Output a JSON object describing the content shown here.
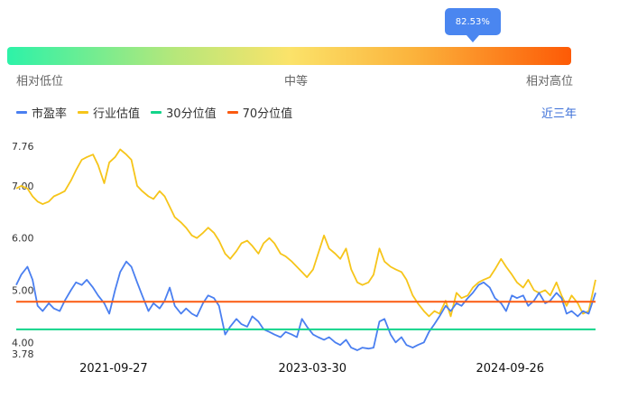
{
  "percentile": {
    "label": "82.53%",
    "value": 0.8253
  },
  "scale": {
    "low": "相对低位",
    "mid": "中等",
    "high": "相对高位"
  },
  "legend": [
    {
      "name": "市盈率",
      "color": "#4a7ff0"
    },
    {
      "name": "行业估值",
      "color": "#f6c51a"
    },
    {
      "name": "30分位值",
      "color": "#12d48a"
    },
    {
      "name": "70分位值",
      "color": "#fb5a10"
    }
  ],
  "period": "近三年",
  "chart_data": {
    "type": "line",
    "ylim": [
      3.78,
      7.76
    ],
    "y_ticks": [
      "7.76",
      "7.00",
      "6.00",
      "5.00",
      "4.00",
      "3.78"
    ],
    "x_ticks": [
      "2021-09-27",
      "2023-03-30",
      "2024-09-26"
    ],
    "x_range": [
      "2021-01-01",
      "2025-05-20"
    ],
    "grid": false,
    "legend_position": "top-left",
    "reference_lines": [
      {
        "name": "30分位值",
        "value": 4.25
      },
      {
        "name": "70分位值",
        "value": 4.78
      }
    ],
    "series": [
      {
        "name": "市盈率",
        "points": [
          [
            "2021-01-01",
            5.1
          ],
          [
            "2021-01-15",
            5.3
          ],
          [
            "2021-02-01",
            5.45
          ],
          [
            "2021-02-15",
            5.2
          ],
          [
            "2021-03-01",
            4.7
          ],
          [
            "2021-03-15",
            4.6
          ],
          [
            "2021-04-01",
            4.75
          ],
          [
            "2021-04-15",
            4.65
          ],
          [
            "2021-05-01",
            4.6
          ],
          [
            "2021-05-15",
            4.8
          ],
          [
            "2021-06-01",
            5.0
          ],
          [
            "2021-06-15",
            5.15
          ],
          [
            "2021-07-01",
            5.1
          ],
          [
            "2021-07-15",
            5.2
          ],
          [
            "2021-08-01",
            5.05
          ],
          [
            "2021-08-15",
            4.9
          ],
          [
            "2021-09-01",
            4.75
          ],
          [
            "2021-09-15",
            4.55
          ],
          [
            "2021-10-01",
            5.0
          ],
          [
            "2021-10-15",
            5.35
          ],
          [
            "2021-11-01",
            5.55
          ],
          [
            "2021-11-15",
            5.45
          ],
          [
            "2021-12-01",
            5.15
          ],
          [
            "2021-12-15",
            4.9
          ],
          [
            "2022-01-01",
            4.6
          ],
          [
            "2022-01-15",
            4.75
          ],
          [
            "2022-02-01",
            4.65
          ],
          [
            "2022-02-15",
            4.8
          ],
          [
            "2022-03-01",
            5.05
          ],
          [
            "2022-03-15",
            4.7
          ],
          [
            "2022-04-01",
            4.55
          ],
          [
            "2022-04-15",
            4.65
          ],
          [
            "2022-05-01",
            4.55
          ],
          [
            "2022-05-15",
            4.5
          ],
          [
            "2022-06-01",
            4.75
          ],
          [
            "2022-06-15",
            4.9
          ],
          [
            "2022-07-01",
            4.85
          ],
          [
            "2022-07-15",
            4.7
          ],
          [
            "2022-08-01",
            4.15
          ],
          [
            "2022-08-15",
            4.3
          ],
          [
            "2022-09-01",
            4.45
          ],
          [
            "2022-09-15",
            4.35
          ],
          [
            "2022-10-01",
            4.3
          ],
          [
            "2022-10-15",
            4.5
          ],
          [
            "2022-11-01",
            4.4
          ],
          [
            "2022-11-15",
            4.25
          ],
          [
            "2022-12-01",
            4.2
          ],
          [
            "2022-12-15",
            4.15
          ],
          [
            "2023-01-01",
            4.1
          ],
          [
            "2023-01-15",
            4.2
          ],
          [
            "2023-02-01",
            4.15
          ],
          [
            "2023-02-15",
            4.1
          ],
          [
            "2023-03-01",
            4.45
          ],
          [
            "2023-03-15",
            4.3
          ],
          [
            "2023-04-01",
            4.15
          ],
          [
            "2023-04-15",
            4.1
          ],
          [
            "2023-05-01",
            4.05
          ],
          [
            "2023-05-15",
            4.1
          ],
          [
            "2023-06-01",
            4.0
          ],
          [
            "2023-06-15",
            3.95
          ],
          [
            "2023-07-01",
            4.05
          ],
          [
            "2023-07-15",
            3.9
          ],
          [
            "2023-08-01",
            3.85
          ],
          [
            "2023-08-15",
            3.9
          ],
          [
            "2023-09-01",
            3.88
          ],
          [
            "2023-09-15",
            3.9
          ],
          [
            "2023-10-01",
            4.4
          ],
          [
            "2023-10-15",
            4.45
          ],
          [
            "2023-11-01",
            4.15
          ],
          [
            "2023-11-15",
            4.0
          ],
          [
            "2023-12-01",
            4.1
          ],
          [
            "2023-12-15",
            3.95
          ],
          [
            "2024-01-01",
            3.9
          ],
          [
            "2024-01-15",
            3.95
          ],
          [
            "2024-02-01",
            4.0
          ],
          [
            "2024-02-15",
            4.2
          ],
          [
            "2024-03-01",
            4.35
          ],
          [
            "2024-03-15",
            4.5
          ],
          [
            "2024-04-01",
            4.7
          ],
          [
            "2024-04-15",
            4.6
          ],
          [
            "2024-05-01",
            4.75
          ],
          [
            "2024-05-15",
            4.7
          ],
          [
            "2024-06-01",
            4.85
          ],
          [
            "2024-06-15",
            4.95
          ],
          [
            "2024-07-01",
            5.1
          ],
          [
            "2024-07-15",
            5.15
          ],
          [
            "2024-08-01",
            5.05
          ],
          [
            "2024-08-15",
            4.85
          ],
          [
            "2024-09-01",
            4.75
          ],
          [
            "2024-09-15",
            4.6
          ],
          [
            "2024-10-01",
            4.9
          ],
          [
            "2024-10-15",
            4.85
          ],
          [
            "2024-11-01",
            4.9
          ],
          [
            "2024-11-15",
            4.7
          ],
          [
            "2024-12-01",
            4.8
          ],
          [
            "2024-12-15",
            4.95
          ],
          [
            "2025-01-01",
            4.75
          ],
          [
            "2025-01-15",
            4.8
          ],
          [
            "2025-02-01",
            4.95
          ],
          [
            "2025-02-15",
            4.85
          ],
          [
            "2025-03-01",
            4.55
          ],
          [
            "2025-03-15",
            4.6
          ],
          [
            "2025-04-01",
            4.5
          ],
          [
            "2025-04-15",
            4.6
          ],
          [
            "2025-05-01",
            4.55
          ],
          [
            "2025-05-20",
            4.95
          ]
        ]
      },
      {
        "name": "行业估值",
        "points": [
          [
            "2021-01-01",
            6.95
          ],
          [
            "2021-01-15",
            7.0
          ],
          [
            "2021-02-01",
            6.95
          ],
          [
            "2021-02-15",
            6.8
          ],
          [
            "2021-03-01",
            6.7
          ],
          [
            "2021-03-15",
            6.65
          ],
          [
            "2021-04-01",
            6.7
          ],
          [
            "2021-04-15",
            6.8
          ],
          [
            "2021-05-01",
            6.85
          ],
          [
            "2021-05-15",
            6.9
          ],
          [
            "2021-06-01",
            7.1
          ],
          [
            "2021-06-15",
            7.3
          ],
          [
            "2021-07-01",
            7.5
          ],
          [
            "2021-07-15",
            7.55
          ],
          [
            "2021-08-01",
            7.6
          ],
          [
            "2021-08-15",
            7.4
          ],
          [
            "2021-09-01",
            7.05
          ],
          [
            "2021-09-15",
            7.45
          ],
          [
            "2021-10-01",
            7.55
          ],
          [
            "2021-10-15",
            7.7
          ],
          [
            "2021-11-01",
            7.6
          ],
          [
            "2021-11-15",
            7.5
          ],
          [
            "2021-12-01",
            7.0
          ],
          [
            "2021-12-15",
            6.9
          ],
          [
            "2022-01-01",
            6.8
          ],
          [
            "2022-01-15",
            6.75
          ],
          [
            "2022-02-01",
            6.9
          ],
          [
            "2022-02-15",
            6.8
          ],
          [
            "2022-03-01",
            6.6
          ],
          [
            "2022-03-15",
            6.4
          ],
          [
            "2022-04-01",
            6.3
          ],
          [
            "2022-04-15",
            6.2
          ],
          [
            "2022-05-01",
            6.05
          ],
          [
            "2022-05-15",
            6.0
          ],
          [
            "2022-06-01",
            6.1
          ],
          [
            "2022-06-15",
            6.2
          ],
          [
            "2022-07-01",
            6.1
          ],
          [
            "2022-07-15",
            5.95
          ],
          [
            "2022-08-01",
            5.7
          ],
          [
            "2022-08-15",
            5.6
          ],
          [
            "2022-09-01",
            5.75
          ],
          [
            "2022-09-15",
            5.9
          ],
          [
            "2022-10-01",
            5.95
          ],
          [
            "2022-10-15",
            5.85
          ],
          [
            "2022-11-01",
            5.7
          ],
          [
            "2022-11-15",
            5.9
          ],
          [
            "2022-12-01",
            6.0
          ],
          [
            "2022-12-15",
            5.9
          ],
          [
            "2023-01-01",
            5.7
          ],
          [
            "2023-01-15",
            5.65
          ],
          [
            "2023-02-01",
            5.55
          ],
          [
            "2023-02-15",
            5.45
          ],
          [
            "2023-03-01",
            5.35
          ],
          [
            "2023-03-15",
            5.25
          ],
          [
            "2023-04-01",
            5.4
          ],
          [
            "2023-04-15",
            5.7
          ],
          [
            "2023-05-01",
            6.05
          ],
          [
            "2023-05-15",
            5.8
          ],
          [
            "2023-06-01",
            5.7
          ],
          [
            "2023-06-15",
            5.6
          ],
          [
            "2023-07-01",
            5.8
          ],
          [
            "2023-07-15",
            5.4
          ],
          [
            "2023-08-01",
            5.15
          ],
          [
            "2023-08-15",
            5.1
          ],
          [
            "2023-09-01",
            5.15
          ],
          [
            "2023-09-15",
            5.3
          ],
          [
            "2023-10-01",
            5.8
          ],
          [
            "2023-10-15",
            5.55
          ],
          [
            "2023-11-01",
            5.45
          ],
          [
            "2023-11-15",
            5.4
          ],
          [
            "2023-12-01",
            5.35
          ],
          [
            "2023-12-15",
            5.2
          ],
          [
            "2024-01-01",
            4.9
          ],
          [
            "2024-01-15",
            4.75
          ],
          [
            "2024-02-01",
            4.6
          ],
          [
            "2024-02-15",
            4.5
          ],
          [
            "2024-03-01",
            4.6
          ],
          [
            "2024-03-15",
            4.55
          ],
          [
            "2024-04-01",
            4.8
          ],
          [
            "2024-04-15",
            4.5
          ],
          [
            "2024-05-01",
            4.95
          ],
          [
            "2024-05-15",
            4.85
          ],
          [
            "2024-06-01",
            4.9
          ],
          [
            "2024-06-15",
            5.05
          ],
          [
            "2024-07-01",
            5.15
          ],
          [
            "2024-07-15",
            5.2
          ],
          [
            "2024-08-01",
            5.25
          ],
          [
            "2024-08-15",
            5.4
          ],
          [
            "2024-09-01",
            5.6
          ],
          [
            "2024-09-15",
            5.45
          ],
          [
            "2024-10-01",
            5.3
          ],
          [
            "2024-10-15",
            5.15
          ],
          [
            "2024-11-01",
            5.05
          ],
          [
            "2024-11-15",
            5.2
          ],
          [
            "2024-12-01",
            5.0
          ],
          [
            "2024-12-15",
            4.95
          ],
          [
            "2025-01-01",
            5.0
          ],
          [
            "2025-01-15",
            4.9
          ],
          [
            "2025-02-01",
            5.15
          ],
          [
            "2025-02-15",
            4.9
          ],
          [
            "2025-03-01",
            4.7
          ],
          [
            "2025-03-15",
            4.9
          ],
          [
            "2025-04-01",
            4.75
          ],
          [
            "2025-04-15",
            4.55
          ],
          [
            "2025-05-01",
            4.6
          ],
          [
            "2025-05-20",
            5.2
          ]
        ]
      }
    ]
  }
}
